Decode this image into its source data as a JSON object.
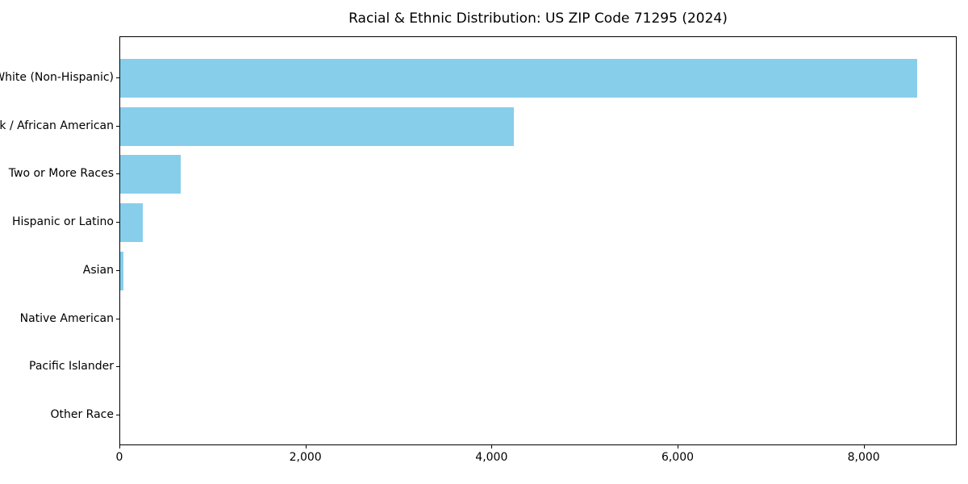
{
  "chart_data": {
    "type": "bar",
    "orientation": "horizontal",
    "title": "Racial & Ethnic Distribution: US ZIP Code 71295 (2024)",
    "categories": [
      "White (Non-Hispanic)",
      "Black / African American",
      "Two or More Races",
      "Hispanic or Latino",
      "Asian",
      "Native American",
      "Pacific Islander",
      "Other Race"
    ],
    "values": [
      8570,
      4230,
      650,
      240,
      32,
      0,
      0,
      0
    ],
    "xlabel": "",
    "ylabel": "",
    "xlim": [
      0,
      9000
    ],
    "xticks": [
      0,
      2000,
      4000,
      6000,
      8000
    ],
    "xtick_labels": [
      "0",
      "2,000",
      "4,000",
      "6,000",
      "8,000"
    ],
    "bar_color": "#87CEEB",
    "axis_color": "#000000",
    "background_color": "#FFFFFF",
    "grid": false,
    "legend": "none"
  }
}
